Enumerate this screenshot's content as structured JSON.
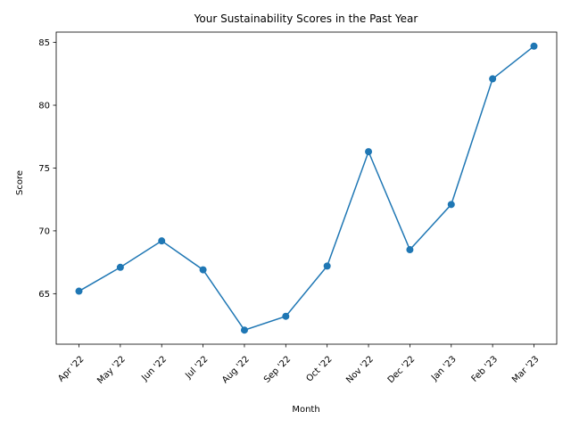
{
  "chart_data": {
    "type": "line",
    "title": "Your Sustainability Scores in the Past Year",
    "xlabel": "Month",
    "ylabel": "Score",
    "categories": [
      "Apr '22",
      "May '22",
      "Jun '22",
      "Jul '22",
      "Aug '22",
      "Sep '22",
      "Oct '22",
      "Nov '22",
      "Dec '22",
      "Jan '23",
      "Feb '23",
      "Mar '23"
    ],
    "series": [
      {
        "values": [
          65.2,
          67.1,
          69.2,
          66.9,
          62.1,
          63.2,
          67.2,
          76.3,
          68.5,
          72.1,
          82.1,
          84.7
        ],
        "color": "#1f77b4",
        "marker": "circle"
      }
    ],
    "ylim": [
      60.98,
      85.82
    ],
    "yticks": [
      65,
      70,
      75,
      80,
      85
    ],
    "grid": false,
    "legend": "none",
    "xtick_rotation": 45
  }
}
